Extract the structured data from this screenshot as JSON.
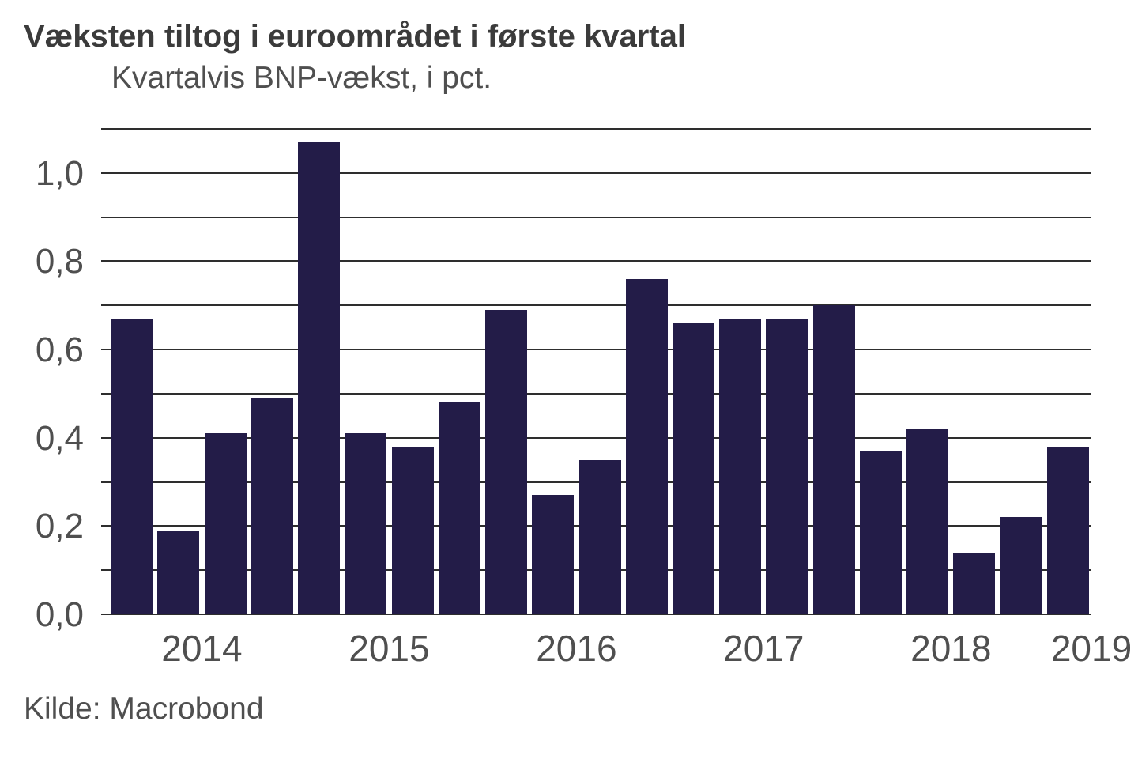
{
  "colors": {
    "bar": "#231c48",
    "grid": "#2e2e2e",
    "title_text": "#3b3b3b",
    "axis_text": "#4f4f4f",
    "background": "#ffffff"
  },
  "chart_data": {
    "type": "bar",
    "title": "Væksten tiltog i euroområdet i første kvartal",
    "subtitle": "Kvartalvis BNP-vækst, i pct.",
    "source": "Kilde: Macrobond",
    "values": [
      0.67,
      0.19,
      0.41,
      0.49,
      1.07,
      0.41,
      0.38,
      0.48,
      0.69,
      0.27,
      0.35,
      0.76,
      0.66,
      0.67,
      0.67,
      0.7,
      0.37,
      0.42,
      0.14,
      0.22,
      0.38
    ],
    "bars_per_year": 4,
    "first_period": "2014 Q1",
    "last_period": "2019 Q1",
    "ylim": [
      0,
      1.1
    ],
    "grid_step": 0.1,
    "grid": true,
    "legend": "none",
    "y_ticks": [
      {
        "label": "0,0",
        "value": 0.0
      },
      {
        "label": "0,2",
        "value": 0.2
      },
      {
        "label": "0,4",
        "value": 0.4
      },
      {
        "label": "0,6",
        "value": 0.6
      },
      {
        "label": "0,8",
        "value": 0.8
      },
      {
        "label": "1,0",
        "value": 1.0
      }
    ],
    "x_ticks": [
      {
        "label": "2014",
        "slot": 2
      },
      {
        "label": "2015",
        "slot": 6
      },
      {
        "label": "2016",
        "slot": 10
      },
      {
        "label": "2017",
        "slot": 14
      },
      {
        "label": "2018",
        "slot": 18
      },
      {
        "label": "2019",
        "slot": 21
      }
    ]
  }
}
